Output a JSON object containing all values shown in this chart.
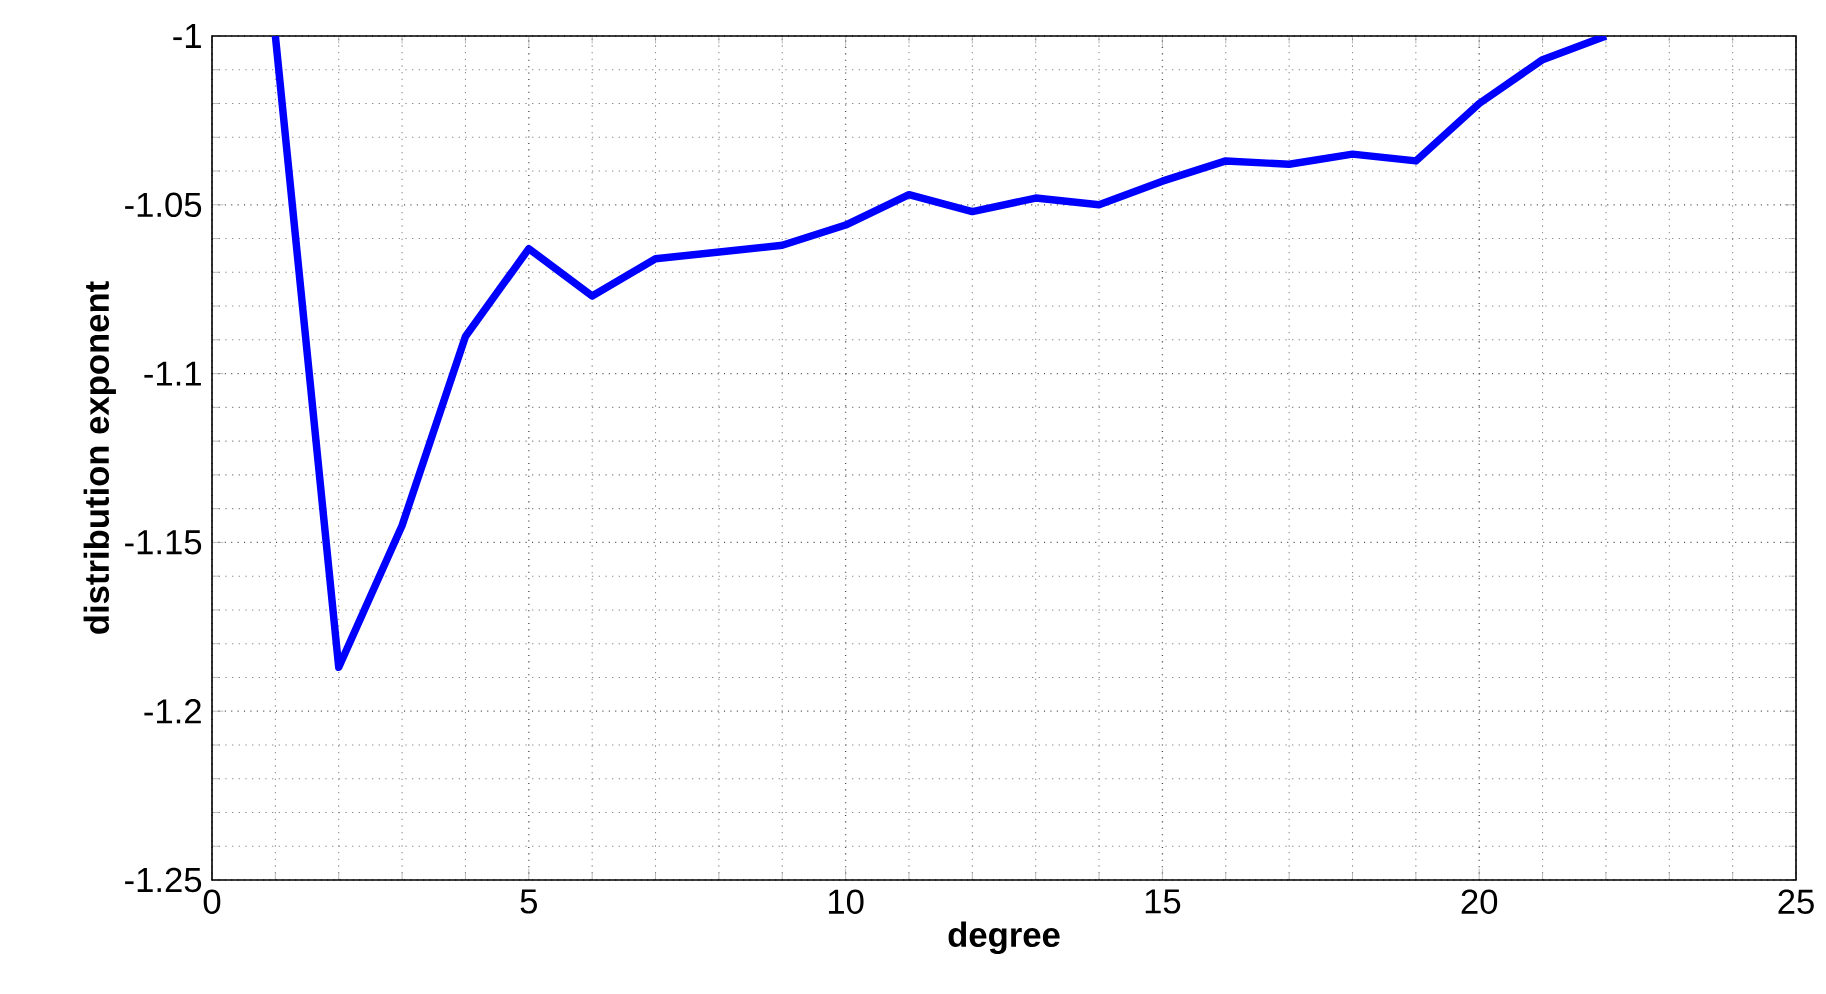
{
  "chart_data": {
    "type": "line",
    "xlabel": "degree",
    "ylabel": "distribution exponent",
    "x": [
      1,
      2,
      3,
      4,
      5,
      6,
      7,
      8,
      9,
      10,
      11,
      12,
      13,
      14,
      15,
      16,
      17,
      18,
      19,
      20,
      21,
      22
    ],
    "series": [
      {
        "color": "#0000ff",
        "values": [
          -1.0,
          -1.187,
          -1.145,
          -1.089,
          -1.063,
          -1.077,
          -1.066,
          -1.064,
          -1.062,
          -1.056,
          -1.047,
          -1.052,
          -1.048,
          -1.05,
          -1.043,
          -1.037,
          -1.038,
          -1.035,
          -1.037,
          -1.02,
          -1.007,
          -1.0
        ]
      }
    ],
    "xlim": [
      0,
      25
    ],
    "ylim": [
      -1.25,
      -1
    ],
    "xticks": [
      0,
      5,
      10,
      15,
      20,
      25
    ],
    "yticks": [
      -1.25,
      -1.2,
      -1.15,
      -1.1,
      -1.05,
      -1
    ],
    "grid": true,
    "marker": "none",
    "line_style": "solid"
  }
}
